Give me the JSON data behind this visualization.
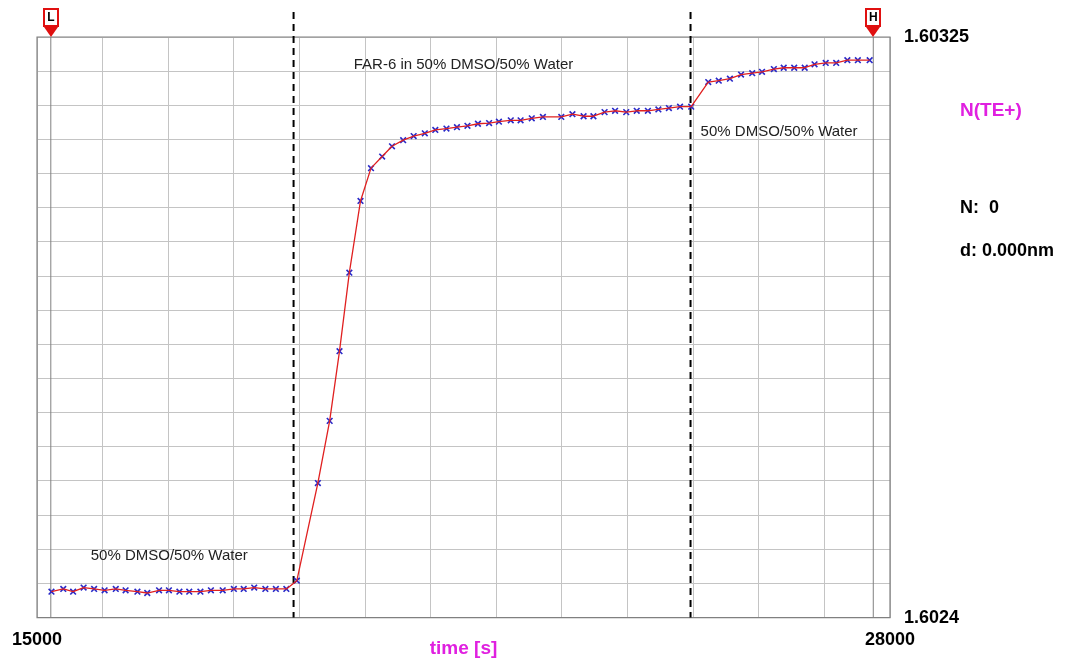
{
  "chart_data": {
    "type": "line",
    "xlabel": "time [s]",
    "ylabel": "N(TE+)",
    "x": [
      15220,
      15400,
      15550,
      15710,
      15870,
      16030,
      16200,
      16350,
      16530,
      16680,
      16860,
      17010,
      17170,
      17320,
      17490,
      17650,
      17830,
      18000,
      18150,
      18310,
      18480,
      18640,
      18800,
      18960,
      19280,
      19460,
      19610,
      19760,
      19930,
      20090,
      20260,
      20410,
      20580,
      20740,
      20910,
      21070,
      21240,
      21400,
      21560,
      21720,
      21890,
      22040,
      22220,
      22370,
      22540,
      22710,
      22990,
      23160,
      23330,
      23480,
      23650,
      23810,
      23980,
      24140,
      24310,
      24470,
      24630,
      24800,
      24970,
      25230,
      25390,
      25560,
      25730,
      25900,
      26050,
      26230,
      26380,
      26540,
      26700,
      26850,
      27020,
      27180,
      27350,
      27510,
      27690
    ],
    "series": [
      {
        "color": "#e02020",
        "marker": "none",
        "values": [
          1.602438,
          1.602442,
          1.602438,
          1.602444,
          1.602442,
          1.60244,
          1.602442,
          1.60244,
          1.602438,
          1.602436,
          1.60244,
          1.60244,
          1.602438,
          1.602438,
          1.602438,
          1.60244,
          1.60244,
          1.602442,
          1.602442,
          1.602444,
          1.602442,
          1.602442,
          1.602442,
          1.602454,
          1.602597,
          1.602688,
          1.60279,
          1.602905,
          1.60301,
          1.603058,
          1.603075,
          1.60309,
          1.603099,
          1.603105,
          1.603109,
          1.603114,
          1.603116,
          1.603118,
          1.60312,
          1.603123,
          1.603124,
          1.603126,
          1.603128,
          1.603128,
          1.603131,
          1.603133,
          1.603133,
          1.603137,
          1.603134,
          1.603134,
          1.60314,
          1.603142,
          1.60314,
          1.603142,
          1.603142,
          1.603144,
          1.603146,
          1.603148,
          1.603148,
          1.603184,
          1.603186,
          1.603189,
          1.603195,
          1.603197,
          1.603199,
          1.603203,
          1.603205,
          1.603205,
          1.603205,
          1.60321,
          1.603212,
          1.603212,
          1.603216,
          1.603216,
          1.603216
        ]
      },
      {
        "type": "scatter",
        "color": "#2828c8",
        "marker": "cross",
        "values": [
          1.602438,
          1.602442,
          1.602438,
          1.602444,
          1.602442,
          1.60244,
          1.602442,
          1.60244,
          1.602438,
          1.602436,
          1.60244,
          1.60244,
          1.602438,
          1.602438,
          1.602438,
          1.60244,
          1.60244,
          1.602442,
          1.602442,
          1.602444,
          1.602442,
          1.602442,
          1.602442,
          1.602454,
          1.602597,
          1.602688,
          1.60279,
          1.602905,
          1.60301,
          1.603058,
          1.603075,
          1.60309,
          1.603099,
          1.603105,
          1.603109,
          1.603114,
          1.603116,
          1.603118,
          1.60312,
          1.603123,
          1.603124,
          1.603126,
          1.603128,
          1.603128,
          1.603131,
          1.603133,
          1.603133,
          1.603137,
          1.603134,
          1.603134,
          1.60314,
          1.603142,
          1.60314,
          1.603142,
          1.603142,
          1.603144,
          1.603146,
          1.603148,
          1.603148,
          1.603184,
          1.603186,
          1.603189,
          1.603195,
          1.603197,
          1.603199,
          1.603203,
          1.603205,
          1.603205,
          1.603205,
          1.60321,
          1.603212,
          1.603212,
          1.603216,
          1.603216,
          1.603216
        ]
      }
    ],
    "xlim": [
      15000,
      28000
    ],
    "xticks": [
      15000,
      {
        "value": 16000,
        "label": null
      },
      {
        "value": 17000,
        "label": null
      },
      {
        "value": 18000,
        "label": null
      },
      {
        "value": 19000,
        "label": null
      },
      {
        "value": 20000,
        "label": null
      },
      {
        "value": 21000,
        "label": null
      },
      {
        "value": 22000,
        "label": null
      },
      {
        "value": 23000,
        "label": null
      },
      {
        "value": 24000,
        "label": null
      },
      {
        "value": 25000,
        "label": null
      },
      {
        "value": 26000,
        "label": null
      },
      {
        "value": 27000,
        "label": null
      },
      28000
    ],
    "ylim": [
      1.6024,
      1.60325
    ],
    "yticks": [
      1.6024,
      {
        "value": 1.60245,
        "label": null
      },
      {
        "value": 1.6025,
        "label": null
      },
      {
        "value": 1.60255,
        "label": null
      },
      {
        "value": 1.6026,
        "label": null
      },
      {
        "value": 1.60265,
        "label": null
      },
      {
        "value": 1.6027,
        "label": null
      },
      {
        "value": 1.60275,
        "label": null
      },
      {
        "value": 1.6028,
        "label": null
      },
      {
        "value": 1.60285,
        "label": null
      },
      {
        "value": 1.6029,
        "label": null
      },
      {
        "value": 1.60295,
        "label": null
      },
      {
        "value": 1.603,
        "label": null
      },
      {
        "value": 1.60305,
        "label": null
      },
      {
        "value": 1.6031,
        "label": null
      },
      {
        "value": 1.60315,
        "label": null
      },
      {
        "value": 1.6032,
        "label": null
      },
      1.60325
    ],
    "grid": true,
    "ref_lines": [
      {
        "axis": "x",
        "value": 15210,
        "label": "L",
        "color": "#808080",
        "line_style": "solid"
      },
      {
        "axis": "x",
        "value": 18910,
        "color": "#000000",
        "line_style": "dashed"
      },
      {
        "axis": "x",
        "value": 24960,
        "color": "#000000",
        "line_style": "dashed"
      },
      {
        "axis": "x",
        "value": 27745,
        "label": "H",
        "color": "#808080",
        "line_style": "solid"
      }
    ],
    "annotations": [
      "50% DMSO/50% Water",
      "FAR-6 in 50% DMSO/50% Water",
      "50% DMSO/50% Water",
      "N:  0",
      "d: 0.000nm"
    ]
  }
}
